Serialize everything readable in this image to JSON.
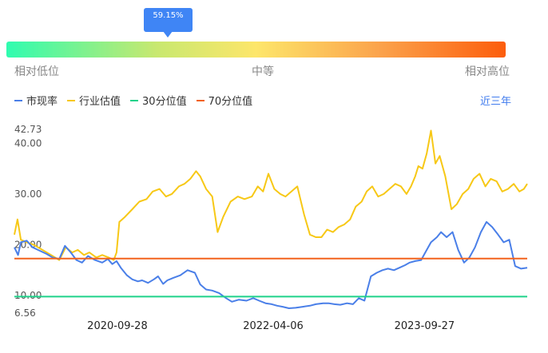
{
  "gauge": {
    "value_label": "59.15%",
    "percentile": 0.5915,
    "labels": {
      "low": "相对低位",
      "mid": "中等",
      "high": "相对高位"
    }
  },
  "legend": {
    "pe": "市现率",
    "industry": "行业估值",
    "p30": "30分位值",
    "p70": "70分位值"
  },
  "range_link": "近三年",
  "colors": {
    "pe": "#4a7fe8",
    "industry": "#f7c816",
    "p30": "#1fd28a",
    "p70": "#f2621c",
    "accent": "#3f85f5"
  },
  "chart_data": {
    "type": "line",
    "x_ticks": [
      "2020-09-28",
      "2022-04-06",
      "2023-09-27"
    ],
    "y_ticks": [
      42.73,
      40.0,
      30.0,
      20.0,
      10.0,
      6.56
    ],
    "y_tick_labels": [
      "42.73",
      "40.00",
      "30.00",
      "20.00",
      "10.00",
      "6.56"
    ],
    "ylim": [
      6.56,
      42.73
    ],
    "x_range": [
      "2019-09-27",
      "2024-09-27"
    ],
    "grid": false,
    "series": [
      {
        "name": "市现率",
        "x": [
          "2019-09-27",
          "2019-10-10",
          "2019-10-20",
          "2019-11-10",
          "2019-12-01",
          "2019-12-20",
          "2020-01-20",
          "2020-02-10",
          "2020-03-05",
          "2020-03-25",
          "2020-04-15",
          "2020-05-05",
          "2020-05-25",
          "2020-06-15",
          "2020-07-10",
          "2020-08-05",
          "2020-08-25",
          "2020-09-10",
          "2020-09-25",
          "2020-10-10",
          "2020-11-01",
          "2020-11-20",
          "2020-12-10",
          "2020-12-25",
          "2021-01-15",
          "2021-02-05",
          "2021-02-20",
          "2021-03-10",
          "2021-03-25",
          "2021-04-15",
          "2021-05-10",
          "2021-06-05",
          "2021-07-01",
          "2021-07-20",
          "2021-08-10",
          "2021-09-01",
          "2021-09-25",
          "2021-10-20",
          "2021-11-10",
          "2021-12-05",
          "2022-01-01",
          "2022-01-25",
          "2022-02-15",
          "2022-03-10",
          "2022-04-01",
          "2022-04-20",
          "2022-05-10",
          "2022-06-01",
          "2022-06-25",
          "2022-07-20",
          "2022-08-15",
          "2022-09-05",
          "2022-10-01",
          "2022-10-20",
          "2022-11-10",
          "2022-12-01",
          "2022-12-25",
          "2023-01-15",
          "2023-02-05",
          "2023-02-25",
          "2023-03-20",
          "2023-04-10",
          "2023-04-30",
          "2023-05-20",
          "2023-06-10",
          "2023-06-30",
          "2023-07-20",
          "2023-08-05",
          "2023-08-25",
          "2023-09-15",
          "2023-09-30",
          "2023-10-20",
          "2023-11-10",
          "2023-11-25",
          "2023-12-15",
          "2024-01-05",
          "2024-01-25",
          "2024-02-15",
          "2024-03-05",
          "2024-03-25",
          "2024-04-15",
          "2024-05-05",
          "2024-05-25",
          "2024-06-15",
          "2024-07-05",
          "2024-07-25",
          "2024-08-15",
          "2024-09-05",
          "2024-09-27"
        ],
        "values": [
          19.5,
          18.0,
          20.5,
          20.8,
          19.5,
          19.0,
          18.2,
          17.5,
          17.2,
          19.8,
          18.5,
          17.0,
          16.5,
          17.8,
          17.0,
          16.5,
          17.2,
          16.2,
          16.8,
          15.5,
          14.0,
          13.2,
          12.8,
          13.0,
          12.5,
          13.2,
          13.8,
          12.3,
          13.0,
          13.5,
          14.0,
          15.0,
          14.5,
          12.2,
          11.2,
          11.0,
          10.5,
          9.5,
          8.8,
          9.2,
          9.0,
          9.5,
          9.0,
          8.5,
          8.3,
          8.0,
          7.8,
          7.5,
          7.6,
          7.8,
          8.0,
          8.3,
          8.5,
          8.5,
          8.3,
          8.2,
          8.5,
          8.3,
          9.5,
          9.0,
          13.8,
          14.5,
          15.0,
          15.3,
          15.0,
          15.5,
          16.0,
          16.5,
          16.8,
          17.0,
          18.5,
          20.5,
          21.5,
          22.5,
          21.5,
          22.5,
          19.0,
          16.5,
          17.5,
          19.5,
          22.5,
          24.5,
          23.5,
          22.0,
          20.5,
          21.0,
          15.8,
          15.3,
          15.5
        ]
      },
      {
        "name": "行业估值",
        "x": [
          "2019-09-27",
          "2019-10-08",
          "2019-10-20",
          "2019-11-10",
          "2019-12-05",
          "2020-01-05",
          "2020-02-05",
          "2020-03-05",
          "2020-03-28",
          "2020-04-20",
          "2020-05-10",
          "2020-06-01",
          "2020-06-20",
          "2020-07-15",
          "2020-08-05",
          "2020-08-28",
          "2020-09-15",
          "2020-09-25",
          "2020-10-05",
          "2020-10-25",
          "2020-11-20",
          "2020-12-15",
          "2021-01-10",
          "2021-02-01",
          "2021-02-25",
          "2021-03-20",
          "2021-04-10",
          "2021-05-05",
          "2021-05-25",
          "2021-06-15",
          "2021-07-05",
          "2021-07-20",
          "2021-08-10",
          "2021-09-01",
          "2021-09-20",
          "2021-10-10",
          "2021-11-05",
          "2021-12-01",
          "2021-12-25",
          "2022-01-20",
          "2022-02-10",
          "2022-03-01",
          "2022-03-20",
          "2022-04-10",
          "2022-05-01",
          "2022-05-20",
          "2022-06-10",
          "2022-07-01",
          "2022-07-25",
          "2022-08-15",
          "2022-09-05",
          "2022-09-25",
          "2022-10-15",
          "2022-11-05",
          "2022-11-25",
          "2022-12-15",
          "2023-01-05",
          "2023-01-25",
          "2023-02-15",
          "2023-03-05",
          "2023-03-25",
          "2023-04-15",
          "2023-05-05",
          "2023-05-25",
          "2023-06-15",
          "2023-07-05",
          "2023-07-25",
          "2023-08-10",
          "2023-08-25",
          "2023-09-05",
          "2023-09-20",
          "2023-10-05",
          "2023-10-20",
          "2023-11-05",
          "2023-11-20",
          "2023-12-10",
          "2024-01-01",
          "2024-01-20",
          "2024-02-10",
          "2024-03-01",
          "2024-03-20",
          "2024-04-10",
          "2024-05-01",
          "2024-05-20",
          "2024-06-10",
          "2024-06-30",
          "2024-07-20",
          "2024-08-10",
          "2024-08-30",
          "2024-09-15",
          "2024-09-27"
        ],
        "values": [
          22.0,
          25.0,
          21.0,
          20.5,
          20.0,
          19.0,
          18.0,
          17.0,
          19.5,
          18.5,
          19.0,
          18.0,
          18.5,
          17.5,
          18.0,
          17.5,
          17.0,
          18.5,
          24.5,
          25.5,
          27.0,
          28.5,
          29.0,
          30.5,
          31.0,
          29.5,
          30.0,
          31.5,
          32.0,
          33.0,
          34.5,
          33.5,
          31.0,
          29.5,
          22.5,
          25.5,
          28.5,
          29.5,
          29.0,
          29.5,
          31.5,
          30.5,
          34.0,
          31.0,
          30.0,
          29.5,
          30.5,
          31.5,
          26.0,
          22.0,
          21.5,
          21.5,
          23.0,
          22.5,
          23.5,
          24.0,
          25.0,
          27.5,
          28.5,
          30.5,
          31.5,
          29.5,
          30.0,
          31.0,
          32.0,
          31.5,
          30.0,
          31.5,
          33.5,
          35.5,
          35.0,
          38.0,
          42.5,
          36.0,
          37.5,
          33.5,
          27.0,
          28.0,
          30.0,
          31.0,
          33.0,
          34.0,
          31.5,
          33.0,
          32.5,
          30.5,
          31.0,
          32.0,
          30.5,
          31.0,
          32.0
        ]
      },
      {
        "name": "30分位值",
        "value": 9.8
      },
      {
        "name": "70分位值",
        "value": 17.3
      }
    ]
  }
}
